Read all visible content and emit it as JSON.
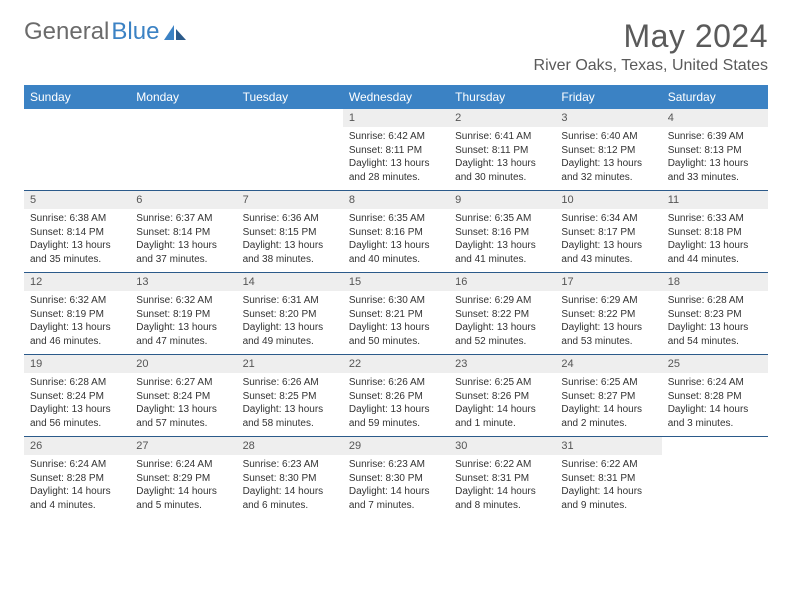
{
  "brand": {
    "part1": "General",
    "part2": "Blue"
  },
  "title": "May 2024",
  "location": "River Oaks, Texas, United States",
  "colors": {
    "header_bg": "#3b82c4",
    "header_text": "#ffffff",
    "daynum_bg": "#eeeeee",
    "cell_border": "#2b5a8a",
    "page_bg": "#ffffff",
    "text": "#333333",
    "title_text": "#5a5a5a"
  },
  "dayNames": [
    "Sunday",
    "Monday",
    "Tuesday",
    "Wednesday",
    "Thursday",
    "Friday",
    "Saturday"
  ],
  "weeks": [
    [
      null,
      null,
      null,
      {
        "n": "1",
        "sr": "6:42 AM",
        "ss": "8:11 PM",
        "dl": "13 hours and 28 minutes."
      },
      {
        "n": "2",
        "sr": "6:41 AM",
        "ss": "8:11 PM",
        "dl": "13 hours and 30 minutes."
      },
      {
        "n": "3",
        "sr": "6:40 AM",
        "ss": "8:12 PM",
        "dl": "13 hours and 32 minutes."
      },
      {
        "n": "4",
        "sr": "6:39 AM",
        "ss": "8:13 PM",
        "dl": "13 hours and 33 minutes."
      }
    ],
    [
      {
        "n": "5",
        "sr": "6:38 AM",
        "ss": "8:14 PM",
        "dl": "13 hours and 35 minutes."
      },
      {
        "n": "6",
        "sr": "6:37 AM",
        "ss": "8:14 PM",
        "dl": "13 hours and 37 minutes."
      },
      {
        "n": "7",
        "sr": "6:36 AM",
        "ss": "8:15 PM",
        "dl": "13 hours and 38 minutes."
      },
      {
        "n": "8",
        "sr": "6:35 AM",
        "ss": "8:16 PM",
        "dl": "13 hours and 40 minutes."
      },
      {
        "n": "9",
        "sr": "6:35 AM",
        "ss": "8:16 PM",
        "dl": "13 hours and 41 minutes."
      },
      {
        "n": "10",
        "sr": "6:34 AM",
        "ss": "8:17 PM",
        "dl": "13 hours and 43 minutes."
      },
      {
        "n": "11",
        "sr": "6:33 AM",
        "ss": "8:18 PM",
        "dl": "13 hours and 44 minutes."
      }
    ],
    [
      {
        "n": "12",
        "sr": "6:32 AM",
        "ss": "8:19 PM",
        "dl": "13 hours and 46 minutes."
      },
      {
        "n": "13",
        "sr": "6:32 AM",
        "ss": "8:19 PM",
        "dl": "13 hours and 47 minutes."
      },
      {
        "n": "14",
        "sr": "6:31 AM",
        "ss": "8:20 PM",
        "dl": "13 hours and 49 minutes."
      },
      {
        "n": "15",
        "sr": "6:30 AM",
        "ss": "8:21 PM",
        "dl": "13 hours and 50 minutes."
      },
      {
        "n": "16",
        "sr": "6:29 AM",
        "ss": "8:22 PM",
        "dl": "13 hours and 52 minutes."
      },
      {
        "n": "17",
        "sr": "6:29 AM",
        "ss": "8:22 PM",
        "dl": "13 hours and 53 minutes."
      },
      {
        "n": "18",
        "sr": "6:28 AM",
        "ss": "8:23 PM",
        "dl": "13 hours and 54 minutes."
      }
    ],
    [
      {
        "n": "19",
        "sr": "6:28 AM",
        "ss": "8:24 PM",
        "dl": "13 hours and 56 minutes."
      },
      {
        "n": "20",
        "sr": "6:27 AM",
        "ss": "8:24 PM",
        "dl": "13 hours and 57 minutes."
      },
      {
        "n": "21",
        "sr": "6:26 AM",
        "ss": "8:25 PM",
        "dl": "13 hours and 58 minutes."
      },
      {
        "n": "22",
        "sr": "6:26 AM",
        "ss": "8:26 PM",
        "dl": "13 hours and 59 minutes."
      },
      {
        "n": "23",
        "sr": "6:25 AM",
        "ss": "8:26 PM",
        "dl": "14 hours and 1 minute."
      },
      {
        "n": "24",
        "sr": "6:25 AM",
        "ss": "8:27 PM",
        "dl": "14 hours and 2 minutes."
      },
      {
        "n": "25",
        "sr": "6:24 AM",
        "ss": "8:28 PM",
        "dl": "14 hours and 3 minutes."
      }
    ],
    [
      {
        "n": "26",
        "sr": "6:24 AM",
        "ss": "8:28 PM",
        "dl": "14 hours and 4 minutes."
      },
      {
        "n": "27",
        "sr": "6:24 AM",
        "ss": "8:29 PM",
        "dl": "14 hours and 5 minutes."
      },
      {
        "n": "28",
        "sr": "6:23 AM",
        "ss": "8:30 PM",
        "dl": "14 hours and 6 minutes."
      },
      {
        "n": "29",
        "sr": "6:23 AM",
        "ss": "8:30 PM",
        "dl": "14 hours and 7 minutes."
      },
      {
        "n": "30",
        "sr": "6:22 AM",
        "ss": "8:31 PM",
        "dl": "14 hours and 8 minutes."
      },
      {
        "n": "31",
        "sr": "6:22 AM",
        "ss": "8:31 PM",
        "dl": "14 hours and 9 minutes."
      },
      null
    ]
  ],
  "labels": {
    "sunrise": "Sunrise: ",
    "sunset": "Sunset: ",
    "daylight": "Daylight: "
  }
}
